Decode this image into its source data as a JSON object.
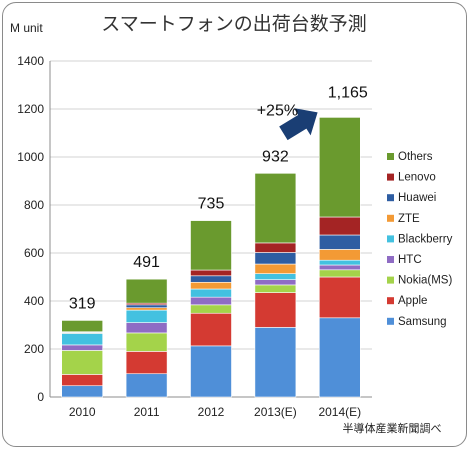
{
  "chart_data": {
    "type": "bar",
    "stacked": true,
    "title": "スマートフォンの出荷台数予測",
    "ylabel": "M unit",
    "ylim": [
      0,
      1400
    ],
    "yticks": [
      0,
      200,
      400,
      600,
      800,
      1000,
      1200,
      1400
    ],
    "grid": true,
    "legend_position": "right",
    "categories": [
      "2010",
      "2011",
      "2012",
      "2013(E)",
      "2014(E)"
    ],
    "totals": [
      319,
      491,
      735,
      932,
      1165
    ],
    "total_labels": [
      "319",
      "491",
      "735",
      "932",
      "1,165"
    ],
    "series": [
      {
        "name": "Samsung",
        "color": "#4f8fd8",
        "values": [
          47,
          97,
          213,
          290,
          330
        ]
      },
      {
        "name": "Apple",
        "color": "#d43a32",
        "values": [
          47,
          93,
          136,
          145,
          170
        ]
      },
      {
        "name": "Nokia(MS)",
        "color": "#a4d34a",
        "values": [
          100,
          77,
          35,
          32,
          30
        ]
      },
      {
        "name": "HTC",
        "color": "#8f6cc4",
        "values": [
          23,
          43,
          32,
          22,
          20
        ]
      },
      {
        "name": "Blackberry",
        "color": "#43c1e0",
        "values": [
          48,
          52,
          34,
          25,
          20
        ]
      },
      {
        "name": "ZTE",
        "color": "#f39a35",
        "values": [
          3,
          10,
          28,
          40,
          45
        ]
      },
      {
        "name": "Huawei",
        "color": "#2e5da2",
        "values": [
          3,
          12,
          27,
          48,
          60
        ]
      },
      {
        "name": "Lenovo",
        "color": "#a42424",
        "values": [
          1,
          7,
          24,
          40,
          75
        ]
      },
      {
        "name": "Others",
        "color": "#6a9a2e",
        "values": [
          47,
          100,
          206,
          290,
          415
        ]
      }
    ],
    "annotation": {
      "text": "+25%",
      "from": "2013(E)",
      "to": "2014(E)",
      "arrow_color": "#1a3e74"
    },
    "source": "半導体産業新聞調べ"
  }
}
